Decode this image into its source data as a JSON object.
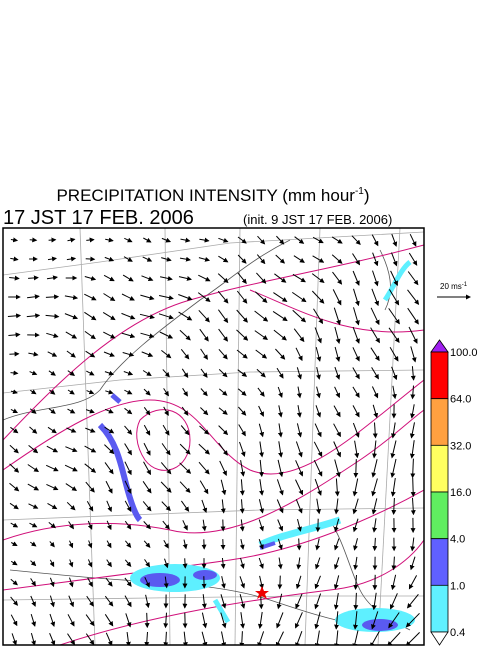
{
  "title": {
    "prefix": "PRECIPITATION INTENSITY (mm hour",
    "superscript": "-1",
    "suffix": ")"
  },
  "valid_time": "17 JST 17 FEB. 2006",
  "init_time": "(init. 9 JST 17 FEB. 2006)",
  "reference_vector": {
    "label": "20 ms",
    "superscript": "-1"
  },
  "colorbar": {
    "labels": [
      "100.0",
      "64.0",
      "32.0",
      "16.0",
      "4.0",
      "1.0",
      "0.4"
    ]
  }
}
